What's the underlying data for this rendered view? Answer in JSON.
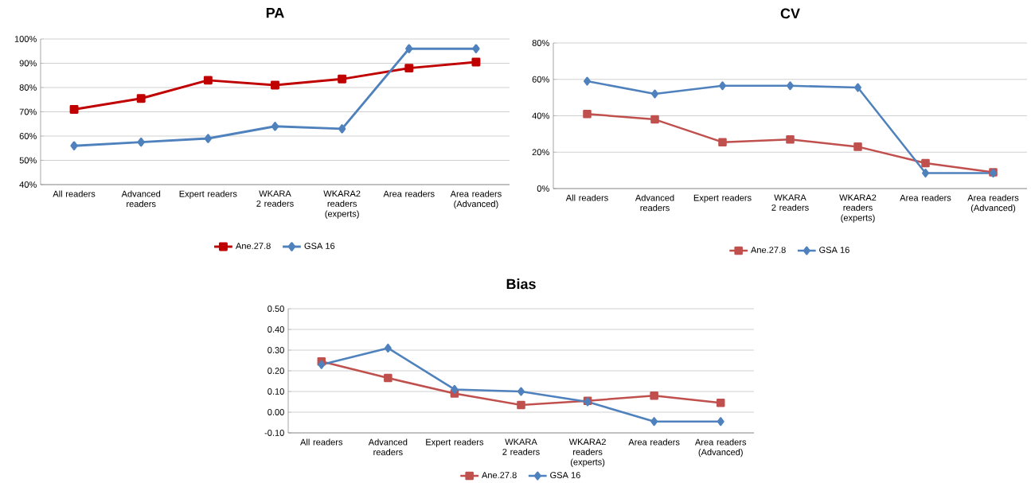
{
  "chart_data": [
    {
      "type": "line",
      "title": "PA",
      "categories": [
        "All readers",
        "Advanced readers",
        "Expert readers",
        "WKARA 2 readers",
        "WKARA2 readers (experts)",
        "Area readers",
        "Area readers (Advanced)"
      ],
      "series": [
        {
          "name": "Ane.27.8",
          "color": "#c00000",
          "marker": "square",
          "values": [
            71,
            75.5,
            83,
            81,
            83.5,
            88,
            90.5
          ]
        },
        {
          "name": "GSA 16",
          "color": "#4f81bd",
          "marker": "diamond",
          "values": [
            56,
            57.5,
            59,
            64,
            63,
            96,
            96
          ]
        }
      ],
      "ylim": [
        40,
        100
      ],
      "yticks": [
        {
          "value": 40,
          "label": "40%"
        },
        {
          "value": 50,
          "label": "50%"
        },
        {
          "value": 60,
          "label": "60%"
        },
        {
          "value": 70,
          "label": "70%"
        },
        {
          "value": 80,
          "label": "80%"
        },
        {
          "value": 90,
          "label": "90%"
        },
        {
          "value": 100,
          "label": "100%"
        }
      ],
      "grid": "y",
      "legend": "bottom"
    },
    {
      "type": "line",
      "title": "CV",
      "categories": [
        "All readers",
        "Advanced readers",
        "Expert readers",
        "WKARA 2 readers",
        "WKARA2 readers (experts)",
        "Area readers",
        "Area readers (Advanced)"
      ],
      "series": [
        {
          "name": "Ane.27.8",
          "color": "#c0504d",
          "marker": "square",
          "values": [
            41,
            38,
            25.5,
            27,
            23,
            14,
            9
          ]
        },
        {
          "name": "GSA 16",
          "color": "#4f81bd",
          "marker": "diamond",
          "values": [
            59,
            52,
            56.5,
            56.5,
            55.5,
            8.5,
            8.5
          ]
        }
      ],
      "ylim": [
        0,
        80
      ],
      "yticks": [
        {
          "value": 0,
          "label": "0%"
        },
        {
          "value": 20,
          "label": "20%"
        },
        {
          "value": 40,
          "label": "40%"
        },
        {
          "value": 60,
          "label": "60%"
        },
        {
          "value": 80,
          "label": "80%"
        }
      ],
      "grid": "y",
      "legend": "bottom"
    },
    {
      "type": "line",
      "title": "Bias",
      "categories": [
        "All readers",
        "Advanced readers",
        "Expert readers",
        "WKARA 2 readers",
        "WKARA2 readers (experts)",
        "Area readers",
        "Area readers (Advanced)"
      ],
      "series": [
        {
          "name": "Ane.27.8",
          "color": "#c0504d",
          "marker": "square",
          "values": [
            0.245,
            0.165,
            0.09,
            0.035,
            0.055,
            0.08,
            0.045
          ]
        },
        {
          "name": "GSA 16",
          "color": "#4f81bd",
          "marker": "diamond",
          "values": [
            0.23,
            0.31,
            0.11,
            0.1,
            0.05,
            -0.045,
            -0.045
          ]
        }
      ],
      "ylim": [
        -0.1,
        0.5
      ],
      "yticks": [
        {
          "value": -0.1,
          "label": "-0.10"
        },
        {
          "value": 0,
          "label": "0.00"
        },
        {
          "value": 0.1,
          "label": "0.10"
        },
        {
          "value": 0.2,
          "label": "0.20"
        },
        {
          "value": 0.3,
          "label": "0.30"
        },
        {
          "value": 0.4,
          "label": "0.40"
        },
        {
          "value": 0.5,
          "label": "0.50"
        }
      ],
      "grid": "y",
      "legend": "bottom"
    }
  ]
}
